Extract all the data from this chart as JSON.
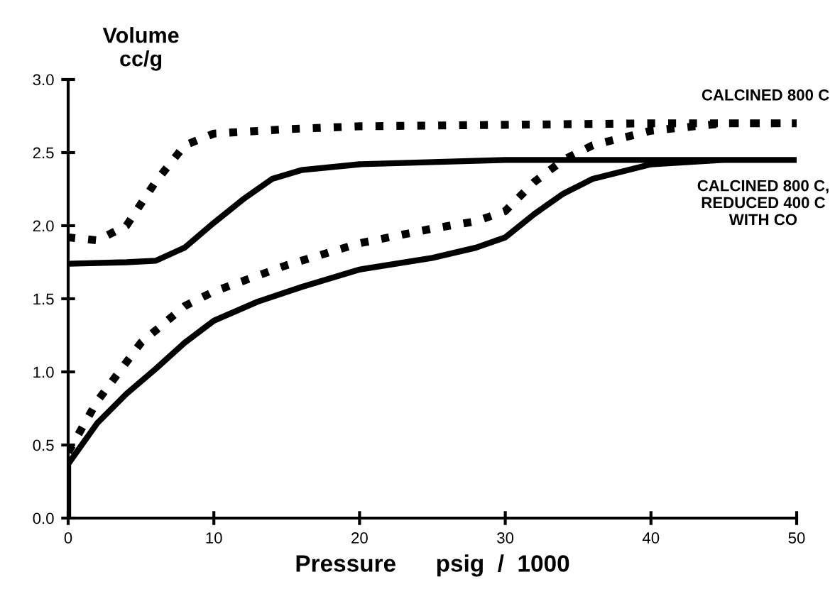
{
  "chart_data": {
    "type": "line",
    "ylabel": "Volume\ncc/g",
    "xlabel": "Pressure      psig  /  1000",
    "xlim": [
      0,
      50
    ],
    "xticks": [
      0,
      10,
      20,
      30,
      40,
      50
    ],
    "ylim": [
      0,
      3.0
    ],
    "yticks": [
      {
        "value": 0,
        "label": "0.0"
      },
      {
        "value": 0.5,
        "label": "0.5"
      },
      {
        "value": 1.0,
        "label": "1.0"
      },
      {
        "value": 1.5,
        "label": "1.5"
      },
      {
        "value": 2.0,
        "label": "2.0"
      },
      {
        "value": 2.5,
        "label": "2.5"
      },
      {
        "value": 3.0,
        "label": "3.0"
      }
    ],
    "grid": false,
    "legend": false,
    "marker": "none",
    "series": [
      {
        "name": "CALCINED 800 C",
        "color": "#000000",
        "line_style": "dotted",
        "x": [
          0,
          2,
          5,
          8,
          10,
          15,
          20,
          25,
          28,
          30,
          32,
          34,
          36,
          40,
          45,
          50,
          40,
          30,
          20,
          15,
          10,
          8,
          6,
          4,
          2,
          0
        ],
        "values": [
          0.45,
          0.8,
          1.2,
          1.45,
          1.55,
          1.73,
          1.88,
          1.98,
          2.03,
          2.1,
          2.3,
          2.45,
          2.55,
          2.65,
          2.7,
          2.7,
          2.7,
          2.69,
          2.68,
          2.66,
          2.63,
          2.55,
          2.3,
          2.0,
          1.9,
          1.92
        ]
      },
      {
        "name": "CALCINED 800 C,\nREDUCED 400 C\nWITH CO",
        "color": "#000000",
        "line_style": "solid",
        "x": [
          0,
          0,
          2,
          4,
          6,
          8,
          10,
          13,
          16,
          20,
          25,
          28,
          30,
          32,
          34,
          36,
          40,
          45,
          50,
          40,
          30,
          20,
          16,
          14,
          12,
          10,
          8,
          6,
          4,
          0
        ],
        "values": [
          0,
          0.37,
          0.65,
          0.85,
          1.02,
          1.2,
          1.35,
          1.48,
          1.58,
          1.7,
          1.78,
          1.85,
          1.92,
          2.08,
          2.22,
          2.32,
          2.42,
          2.45,
          2.45,
          2.45,
          2.45,
          2.42,
          2.38,
          2.32,
          2.18,
          2.02,
          1.85,
          1.76,
          1.75,
          1.74
        ]
      }
    ]
  }
}
